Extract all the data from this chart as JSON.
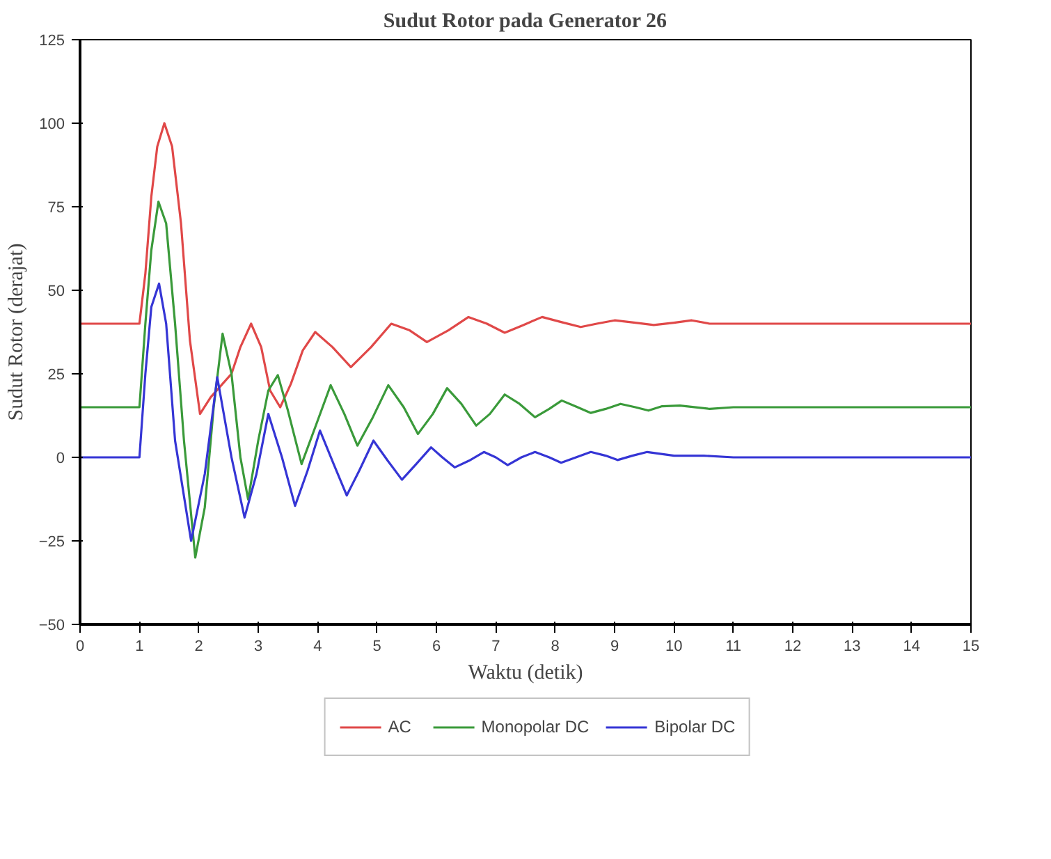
{
  "chart_data": {
    "type": "line",
    "title": "Sudut Rotor pada Generator 26",
    "xlabel": "Waktu (detik)",
    "ylabel": "Sudut Rotor (derajat)",
    "xlim": [
      0,
      15
    ],
    "xticks": [
      0,
      1,
      2,
      3,
      4,
      5,
      6,
      7,
      8,
      9,
      10,
      11,
      12,
      13,
      14,
      15
    ],
    "ylim": [
      -50,
      125
    ],
    "yticks": [
      -50,
      -25,
      0,
      25,
      50,
      75,
      100,
      125
    ],
    "grid": false,
    "legend": "bottom",
    "marker": "none",
    "line_style": "solid",
    "series": [
      {
        "name": "AC",
        "color": "#e04848",
        "x": [
          0,
          1,
          1.1,
          1.2,
          1.3,
          1.42,
          1.55,
          1.7,
          1.85,
          2.02,
          2.2,
          2.4,
          2.55,
          2.7,
          2.88,
          3.05,
          3.2,
          3.37,
          3.55,
          3.75,
          3.96,
          4.25,
          4.56,
          4.9,
          5.24,
          5.55,
          5.84,
          6.2,
          6.54,
          6.85,
          7.15,
          7.45,
          7.78,
          8.1,
          8.43,
          8.7,
          9.0,
          9.35,
          9.66,
          10.0,
          10.3,
          10.6,
          11,
          12,
          13,
          14,
          15
        ],
        "values": [
          40,
          40,
          55,
          78,
          93,
          100,
          93,
          70,
          35,
          13,
          18,
          22,
          25,
          33,
          40,
          33,
          20,
          15,
          22,
          32,
          37.5,
          33,
          27,
          33,
          40,
          38,
          34.5,
          38,
          42,
          40,
          37.3,
          39.5,
          42,
          40.5,
          39,
          40,
          41,
          40.3,
          39.6,
          40.3,
          41,
          40,
          40,
          40,
          40,
          40,
          40
        ]
      },
      {
        "name": "Monopolar DC",
        "color": "#3a9a3a",
        "x": [
          0,
          1,
          1.1,
          1.2,
          1.32,
          1.45,
          1.6,
          1.75,
          1.94,
          2.1,
          2.25,
          2.4,
          2.55,
          2.7,
          2.83,
          3.0,
          3.17,
          3.33,
          3.5,
          3.73,
          3.98,
          4.22,
          4.45,
          4.67,
          4.93,
          5.19,
          5.45,
          5.69,
          5.94,
          6.18,
          6.42,
          6.67,
          6.9,
          7.15,
          7.4,
          7.66,
          7.9,
          8.11,
          8.35,
          8.6,
          8.85,
          9.1,
          9.35,
          9.57,
          9.8,
          10.1,
          10.6,
          11,
          12,
          13,
          14,
          15
        ],
        "values": [
          15,
          15,
          40,
          62,
          76.5,
          70,
          40,
          5,
          -30,
          -15,
          15,
          37,
          25,
          0,
          -12.6,
          5,
          20,
          24.6,
          14,
          -2,
          10,
          21.6,
          13,
          3.5,
          12,
          21.6,
          15,
          7,
          13,
          20.7,
          16,
          9.5,
          13,
          18.8,
          16,
          12,
          14.5,
          17,
          15.2,
          13.3,
          14.5,
          16,
          15,
          14,
          15.3,
          15.5,
          14.5,
          15,
          15,
          15,
          15,
          15
        ]
      },
      {
        "name": "Bipolar DC",
        "color": "#3535d5",
        "x": [
          0,
          1,
          1.1,
          1.2,
          1.33,
          1.45,
          1.6,
          1.87,
          2.1,
          2.31,
          2.55,
          2.77,
          2.97,
          3.17,
          3.4,
          3.62,
          3.83,
          4.04,
          4.27,
          4.49,
          4.7,
          4.94,
          5.18,
          5.42,
          5.66,
          5.91,
          6.1,
          6.31,
          6.55,
          6.8,
          7.0,
          7.2,
          7.43,
          7.66,
          7.9,
          8.1,
          8.35,
          8.6,
          8.85,
          9.05,
          9.3,
          9.55,
          10,
          10.5,
          11,
          12,
          13,
          14,
          15
        ],
        "values": [
          0,
          0,
          25,
          45,
          52,
          40,
          5,
          -25,
          -5,
          24,
          0,
          -18,
          -5,
          13,
          0,
          -14.5,
          -4,
          8,
          -2,
          -11.4,
          -4,
          5,
          -1,
          -6.7,
          -2,
          3,
          0,
          -3,
          -1,
          1.6,
          0,
          -2.3,
          0,
          1.6,
          0,
          -1.6,
          0,
          1.6,
          0.5,
          -0.8,
          0.5,
          1.6,
          0.5,
          0.5,
          0,
          0,
          0,
          0,
          0
        ]
      }
    ]
  }
}
